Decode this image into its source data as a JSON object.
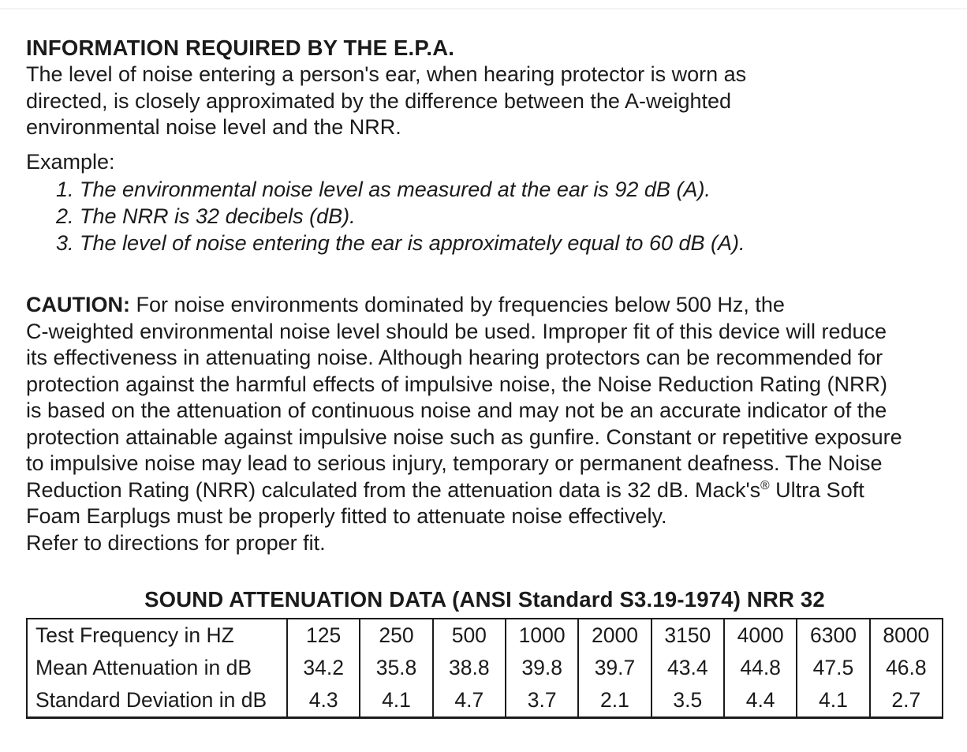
{
  "page": {
    "heading": "INFORMATION REQUIRED BY THE E.P.A.",
    "intro_lines": [
      "The level of noise entering a person's ear, when hearing protector is worn as",
      "directed, is closely approximated by the difference between the A-weighted",
      "environmental noise level and the NRR."
    ],
    "example": {
      "label": "Example:",
      "items": [
        "1. The environmental noise level as measured at the ear is 92 dB (A).",
        "2. The NRR is 32 decibels (dB).",
        "3. The level of noise entering the ear is approximately equal to 60 dB (A)."
      ]
    },
    "caution": {
      "label": "CAUTION:",
      "line1_rest": " For noise environments dominated by frequencies below 500 Hz, the",
      "lines_mid": [
        "C-weighted environmental noise level should be used. Improper fit of this device will reduce",
        "its effectiveness in attenuating noise. Although hearing protectors can be recommended for",
        "protection against the harmful effects of impulsive noise, the Noise Reduction Rating (NRR)",
        "is based on the attenuation of continuous noise and may not be an accurate indicator of the",
        "protection attainable against impulsive noise such as gunfire. Constant or repetitive exposure",
        "to impulsive noise may lead to serious injury, temporary or permanent deafness. The Noise"
      ],
      "mack_line": {
        "before": "Reduction Rating (NRR) calculated from the attenuation data is 32 dB. Mack's",
        "reg": "®",
        "after": " Ultra Soft"
      },
      "line9": "Foam Earplugs must be properly fitted to attenuate noise effectively.",
      "line10": "Refer to directions for proper fit."
    },
    "table": {
      "title": "SOUND ATTENUATION DATA (ANSI Standard S3.19-1974) NRR 32",
      "rows": [
        {
          "label": "Test Frequency in HZ",
          "values": [
            "125",
            "250",
            "500",
            "1000",
            "2000",
            "3150",
            "4000",
            "6300",
            "8000"
          ]
        },
        {
          "label": "Mean Attenuation in dB",
          "values": [
            "34.2",
            "35.8",
            "38.8",
            "39.8",
            "39.7",
            "43.4",
            "44.8",
            "47.5",
            "46.8"
          ]
        },
        {
          "label": "Standard Deviation in dB",
          "values": [
            "4.3",
            "4.1",
            "4.7",
            "3.7",
            "2.1",
            "3.5",
            "4.4",
            "4.1",
            "2.7"
          ]
        }
      ]
    }
  }
}
